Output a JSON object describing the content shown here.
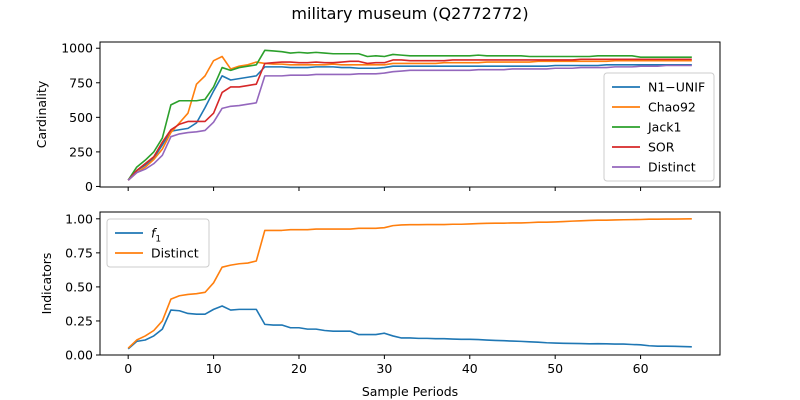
{
  "chart_data": {
    "title": "military museum (Q2772772)",
    "xlabel": "Sample Periods",
    "xlim": [
      -3.3,
      69.3
    ],
    "xticks": [
      0,
      10,
      20,
      30,
      40,
      50,
      60
    ],
    "grid": false,
    "panels": [
      {
        "type": "line",
        "ylabel": "Cardinality",
        "ylim": [
          -4,
          1045
        ],
        "yticks": [
          0,
          250,
          500,
          750,
          1000
        ],
        "legend_loc": "lower right",
        "series": [
          {
            "name": "N1−UNIF",
            "color": "#1f77b4",
            "x": [
              0,
              1,
              2,
              3,
              4,
              5,
              6,
              7,
              8,
              9,
              10,
              11,
              12,
              13,
              14,
              15,
              16,
              17,
              18,
              19,
              20,
              21,
              22,
              23,
              24,
              25,
              26,
              27,
              28,
              29,
              30,
              31,
              32,
              33,
              34,
              35,
              36,
              37,
              38,
              39,
              40,
              41,
              42,
              43,
              44,
              45,
              46,
              47,
              48,
              49,
              50,
              51,
              52,
              53,
              54,
              55,
              56,
              57,
              58,
              59,
              60,
              61,
              62,
              63,
              64,
              65,
              66
            ],
            "y": [
              45,
              115,
              155,
              205,
              300,
              400,
              410,
              420,
              460,
              570,
              690,
              800,
              770,
              780,
              790,
              800,
              865,
              865,
              865,
              860,
              860,
              860,
              865,
              865,
              865,
              860,
              860,
              855,
              855,
              855,
              860,
              870,
              870,
              870,
              870,
              870,
              870,
              870,
              870,
              870,
              870,
              870,
              870,
              870,
              870,
              870,
              870,
              870,
              870,
              870,
              875,
              875,
              875,
              875,
              875,
              875,
              880,
              880,
              880,
              880,
              880,
              880,
              880,
              880,
              880,
              880,
              880
            ]
          },
          {
            "name": "Chao92",
            "color": "#ff7f0e",
            "x": [
              0,
              1,
              2,
              3,
              4,
              5,
              6,
              7,
              8,
              9,
              10,
              11,
              12,
              13,
              14,
              15,
              16,
              17,
              18,
              19,
              20,
              21,
              22,
              23,
              24,
              25,
              26,
              27,
              28,
              29,
              30,
              31,
              32,
              33,
              34,
              35,
              36,
              37,
              38,
              39,
              40,
              41,
              42,
              43,
              44,
              45,
              46,
              47,
              48,
              49,
              50,
              51,
              52,
              53,
              54,
              55,
              56,
              57,
              58,
              59,
              60,
              61,
              62,
              63,
              64,
              65,
              66
            ],
            "y": [
              45,
              100,
              140,
              195,
              270,
              390,
              460,
              530,
              740,
              800,
              910,
              940,
              850,
              870,
              880,
              900,
              890,
              885,
              885,
              880,
              880,
              880,
              880,
              880,
              885,
              880,
              880,
              880,
              880,
              880,
              880,
              890,
              890,
              890,
              890,
              890,
              890,
              895,
              895,
              895,
              895,
              895,
              900,
              900,
              900,
              900,
              900,
              900,
              905,
              905,
              905,
              905,
              905,
              905,
              905,
              905,
              905,
              910,
              910,
              910,
              910,
              910,
              910,
              910,
              910,
              910,
              910
            ]
          },
          {
            "name": "Jack1",
            "color": "#2ca02c",
            "x": [
              0,
              1,
              2,
              3,
              4,
              5,
              6,
              7,
              8,
              9,
              10,
              11,
              12,
              13,
              14,
              15,
              16,
              17,
              18,
              19,
              20,
              21,
              22,
              23,
              24,
              25,
              26,
              27,
              28,
              29,
              30,
              31,
              32,
              33,
              34,
              35,
              36,
              37,
              38,
              39,
              40,
              41,
              42,
              43,
              44,
              45,
              46,
              47,
              48,
              49,
              50,
              51,
              52,
              53,
              54,
              55,
              56,
              57,
              58,
              59,
              60,
              61,
              62,
              63,
              64,
              65,
              66
            ],
            "y": [
              45,
              140,
              190,
              250,
              350,
              590,
              620,
              620,
              620,
              630,
              720,
              860,
              840,
              860,
              870,
              880,
              985,
              980,
              975,
              965,
              970,
              965,
              970,
              965,
              960,
              960,
              960,
              960,
              940,
              945,
              940,
              955,
              950,
              945,
              945,
              945,
              945,
              945,
              945,
              945,
              945,
              950,
              945,
              945,
              945,
              945,
              945,
              940,
              940,
              940,
              940,
              940,
              940,
              940,
              940,
              945,
              945,
              945,
              945,
              945,
              935,
              935,
              935,
              935,
              935,
              935,
              935
            ]
          },
          {
            "name": "SOR",
            "color": "#d62728",
            "x": [
              0,
              1,
              2,
              3,
              4,
              5,
              6,
              7,
              8,
              9,
              10,
              11,
              12,
              13,
              14,
              15,
              16,
              17,
              18,
              19,
              20,
              21,
              22,
              23,
              24,
              25,
              26,
              27,
              28,
              29,
              30,
              31,
              32,
              33,
              34,
              35,
              36,
              37,
              38,
              39,
              40,
              41,
              42,
              43,
              44,
              45,
              46,
              47,
              48,
              49,
              50,
              51,
              52,
              53,
              54,
              55,
              56,
              57,
              58,
              59,
              60,
              61,
              62,
              63,
              64,
              65,
              66
            ],
            "y": [
              45,
              115,
              165,
              215,
              320,
              410,
              450,
              470,
              470,
              470,
              530,
              680,
              720,
              720,
              730,
              740,
              890,
              895,
              900,
              900,
              895,
              895,
              900,
              895,
              895,
              900,
              905,
              905,
              890,
              895,
              895,
              915,
              915,
              910,
              910,
              910,
              910,
              910,
              915,
              915,
              915,
              915,
              915,
              915,
              915,
              915,
              915,
              915,
              915,
              915,
              915,
              915,
              915,
              920,
              920,
              920,
              920,
              920,
              920,
              920,
              920,
              920,
              920,
              920,
              920,
              920,
              920
            ]
          },
          {
            "name": "Distinct",
            "color": "#9467bd",
            "x": [
              0,
              1,
              2,
              3,
              4,
              5,
              6,
              7,
              8,
              9,
              10,
              11,
              12,
              13,
              14,
              15,
              16,
              17,
              18,
              19,
              20,
              21,
              22,
              23,
              24,
              25,
              26,
              27,
              28,
              29,
              30,
              31,
              32,
              33,
              34,
              35,
              36,
              37,
              38,
              39,
              40,
              41,
              42,
              43,
              44,
              45,
              46,
              47,
              48,
              49,
              50,
              51,
              52,
              53,
              54,
              55,
              56,
              57,
              58,
              59,
              60,
              61,
              62,
              63,
              64,
              65,
              66
            ],
            "y": [
              45,
              100,
              125,
              165,
              225,
              360,
              380,
              390,
              395,
              405,
              465,
              565,
              580,
              585,
              595,
              605,
              800,
              800,
              800,
              805,
              805,
              805,
              810,
              810,
              810,
              810,
              810,
              815,
              815,
              815,
              820,
              830,
              835,
              840,
              840,
              840,
              840,
              840,
              840,
              840,
              840,
              845,
              845,
              845,
              845,
              850,
              850,
              850,
              850,
              850,
              855,
              855,
              855,
              860,
              860,
              860,
              860,
              865,
              865,
              865,
              870,
              870,
              870,
              875,
              875,
              875,
              875
            ]
          }
        ]
      },
      {
        "type": "line",
        "ylabel": "Indicators",
        "ylim": [
          0,
          1.05
        ],
        "yticks": [
          0.0,
          0.25,
          0.5,
          0.75,
          1.0
        ],
        "yticklabels": [
          "0.00",
          "0.25",
          "0.50",
          "0.75",
          "1.00"
        ],
        "legend_loc": "upper left",
        "series": [
          {
            "name_base": "f",
            "name_sub": "1",
            "color": "#1f77b4",
            "x": [
              0,
              1,
              2,
              3,
              4,
              5,
              6,
              7,
              8,
              9,
              10,
              11,
              12,
              13,
              14,
              15,
              16,
              17,
              18,
              19,
              20,
              21,
              22,
              23,
              24,
              25,
              26,
              27,
              28,
              29,
              30,
              31,
              32,
              33,
              34,
              35,
              36,
              37,
              38,
              39,
              40,
              41,
              42,
              43,
              44,
              45,
              46,
              47,
              48,
              49,
              50,
              51,
              52,
              53,
              54,
              55,
              56,
              57,
              58,
              59,
              60,
              61,
              62,
              63,
              64,
              65,
              66
            ],
            "y": [
              0.045,
              0.1,
              0.11,
              0.14,
              0.19,
              0.33,
              0.325,
              0.305,
              0.3,
              0.3,
              0.335,
              0.36,
              0.33,
              0.335,
              0.335,
              0.335,
              0.225,
              0.22,
              0.22,
              0.2,
              0.2,
              0.19,
              0.19,
              0.18,
              0.175,
              0.175,
              0.175,
              0.15,
              0.15,
              0.15,
              0.16,
              0.14,
              0.125,
              0.125,
              0.122,
              0.122,
              0.12,
              0.12,
              0.117,
              0.115,
              0.115,
              0.113,
              0.11,
              0.107,
              0.105,
              0.102,
              0.1,
              0.097,
              0.094,
              0.09,
              0.088,
              0.086,
              0.085,
              0.084,
              0.082,
              0.083,
              0.082,
              0.08,
              0.08,
              0.077,
              0.075,
              0.068,
              0.065,
              0.065,
              0.064,
              0.062,
              0.06
            ]
          },
          {
            "name": "Distinct",
            "color": "#ff7f0e",
            "x": [
              0,
              1,
              2,
              3,
              4,
              5,
              6,
              7,
              8,
              9,
              10,
              11,
              12,
              13,
              14,
              15,
              16,
              17,
              18,
              19,
              20,
              21,
              22,
              23,
              24,
              25,
              26,
              27,
              28,
              29,
              30,
              31,
              32,
              33,
              34,
              35,
              36,
              37,
              38,
              39,
              40,
              41,
              42,
              43,
              44,
              45,
              46,
              47,
              48,
              49,
              50,
              51,
              52,
              53,
              54,
              55,
              56,
              57,
              58,
              59,
              60,
              61,
              62,
              63,
              64,
              65,
              66
            ],
            "y": [
              0.05,
              0.11,
              0.14,
              0.18,
              0.25,
              0.41,
              0.435,
              0.445,
              0.45,
              0.46,
              0.53,
              0.645,
              0.66,
              0.67,
              0.675,
              0.69,
              0.915,
              0.915,
              0.915,
              0.92,
              0.92,
              0.92,
              0.925,
              0.925,
              0.925,
              0.925,
              0.925,
              0.93,
              0.93,
              0.93,
              0.935,
              0.95,
              0.955,
              0.957,
              0.957,
              0.958,
              0.958,
              0.958,
              0.96,
              0.96,
              0.962,
              0.965,
              0.967,
              0.968,
              0.968,
              0.97,
              0.97,
              0.972,
              0.975,
              0.975,
              0.977,
              0.98,
              0.983,
              0.985,
              0.988,
              0.99,
              0.99,
              0.992,
              0.993,
              0.994,
              0.995,
              0.997,
              0.997,
              0.998,
              0.998,
              0.999,
              1.0
            ]
          }
        ]
      }
    ]
  }
}
